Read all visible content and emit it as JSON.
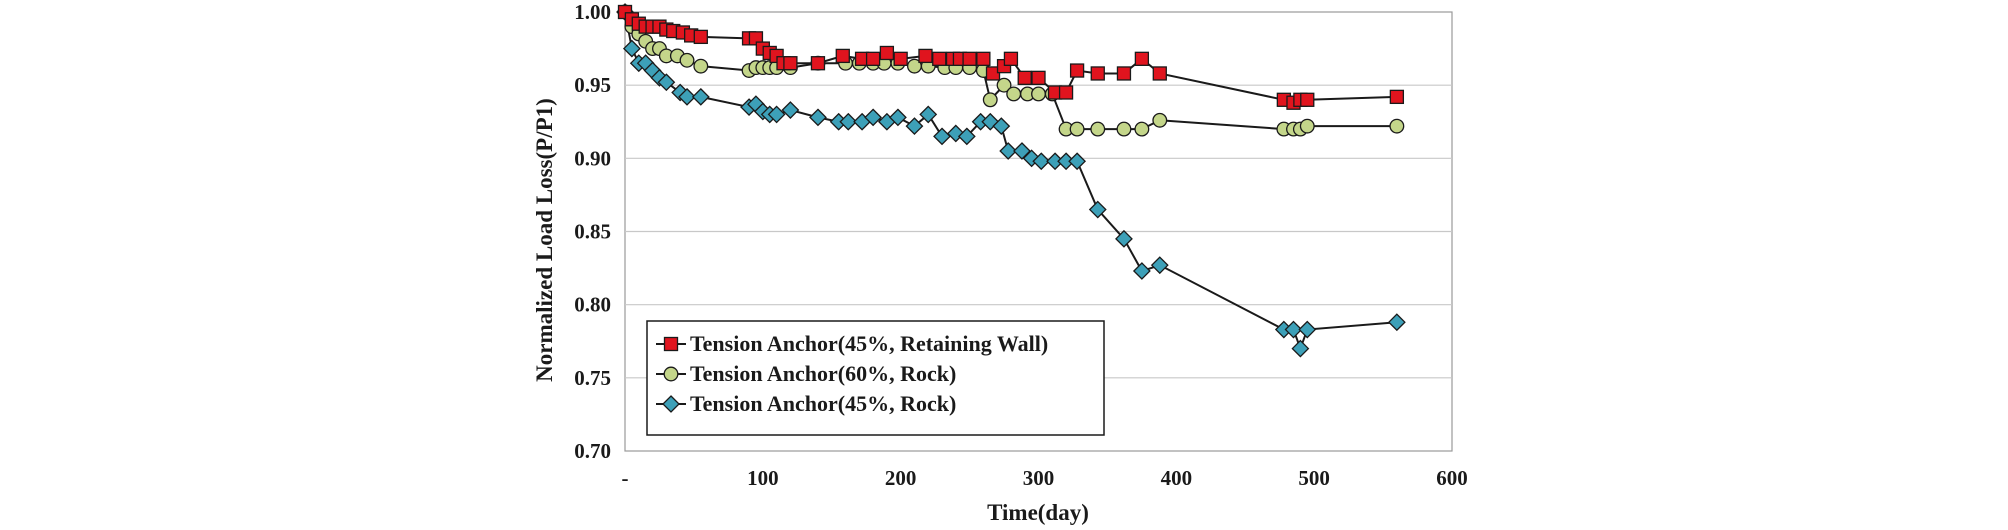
{
  "chart_data": {
    "type": "scatter-line",
    "title": "",
    "xlabel": "Time(day)",
    "ylabel": "Normalized Load Loss(P/P1)",
    "xlim": [
      0,
      600
    ],
    "ylim": [
      0.7,
      1.0
    ],
    "x_ticks": [
      {
        "value": 0,
        "label": "-"
      },
      {
        "value": 100,
        "label": "100"
      },
      {
        "value": 200,
        "label": "200"
      },
      {
        "value": 300,
        "label": "300"
      },
      {
        "value": 400,
        "label": "400"
      },
      {
        "value": 500,
        "label": "500"
      },
      {
        "value": 600,
        "label": "600"
      }
    ],
    "y_ticks": [
      {
        "value": 0.7,
        "label": "0.70"
      },
      {
        "value": 0.75,
        "label": "0.75"
      },
      {
        "value": 0.8,
        "label": "0.80"
      },
      {
        "value": 0.85,
        "label": "0.85"
      },
      {
        "value": 0.9,
        "label": "0.90"
      },
      {
        "value": 0.95,
        "label": "0.95"
      },
      {
        "value": 1.0,
        "label": "1.00"
      }
    ],
    "grid": "horizontal",
    "legend_position": "bottom-left",
    "series": [
      {
        "name": "Tension Anchor(45%, Retaining Wall)",
        "marker": "square",
        "color": "#e0141e",
        "x": [
          0,
          5,
          10,
          15,
          20,
          25,
          30,
          35,
          42,
          48,
          55,
          90,
          95,
          100,
          105,
          110,
          115,
          120,
          140,
          158,
          172,
          180,
          190,
          200,
          218,
          228,
          238,
          243,
          250,
          260,
          267,
          275,
          280,
          290,
          300,
          312,
          320,
          328,
          343,
          362,
          375,
          388,
          478,
          485,
          490,
          495,
          560
        ],
        "y": [
          1.0,
          0.995,
          0.992,
          0.99,
          0.99,
          0.99,
          0.988,
          0.987,
          0.986,
          0.984,
          0.983,
          0.982,
          0.982,
          0.975,
          0.972,
          0.97,
          0.965,
          0.965,
          0.965,
          0.97,
          0.968,
          0.968,
          0.972,
          0.968,
          0.97,
          0.968,
          0.968,
          0.968,
          0.968,
          0.968,
          0.958,
          0.963,
          0.968,
          0.955,
          0.955,
          0.945,
          0.945,
          0.96,
          0.958,
          0.958,
          0.968,
          0.958,
          0.94,
          0.938,
          0.94,
          0.94,
          0.942
        ]
      },
      {
        "name": "Tension Anchor(60%, Rock)",
        "marker": "circle",
        "color": "#c4d68a",
        "x": [
          0,
          5,
          10,
          15,
          20,
          25,
          30,
          38,
          45,
          55,
          90,
          95,
          100,
          105,
          110,
          120,
          140,
          160,
          170,
          180,
          188,
          198,
          210,
          220,
          232,
          240,
          250,
          260,
          265,
          275,
          282,
          292,
          300,
          310,
          320,
          328,
          343,
          362,
          375,
          388,
          478,
          485,
          490,
          495,
          560
        ],
        "y": [
          1.0,
          0.99,
          0.985,
          0.98,
          0.975,
          0.975,
          0.97,
          0.97,
          0.967,
          0.963,
          0.96,
          0.962,
          0.962,
          0.962,
          0.962,
          0.962,
          0.965,
          0.965,
          0.965,
          0.965,
          0.965,
          0.965,
          0.963,
          0.963,
          0.962,
          0.962,
          0.962,
          0.96,
          0.94,
          0.95,
          0.944,
          0.944,
          0.944,
          0.944,
          0.92,
          0.92,
          0.92,
          0.92,
          0.92,
          0.926,
          0.92,
          0.92,
          0.92,
          0.922,
          0.922
        ]
      },
      {
        "name": "Tension Anchor(45%, Rock)",
        "marker": "diamond",
        "color": "#3da0b8",
        "x": [
          0,
          5,
          10,
          15,
          20,
          25,
          30,
          40,
          45,
          55,
          90,
          95,
          100,
          105,
          110,
          120,
          140,
          155,
          162,
          172,
          180,
          190,
          198,
          210,
          220,
          230,
          240,
          248,
          258,
          265,
          273,
          278,
          288,
          295,
          302,
          312,
          320,
          328,
          343,
          362,
          375,
          388,
          478,
          485,
          490,
          495,
          560
        ],
        "y": [
          1.0,
          0.975,
          0.965,
          0.965,
          0.96,
          0.955,
          0.952,
          0.945,
          0.942,
          0.942,
          0.935,
          0.937,
          0.932,
          0.93,
          0.93,
          0.933,
          0.928,
          0.925,
          0.925,
          0.925,
          0.928,
          0.925,
          0.928,
          0.922,
          0.93,
          0.915,
          0.917,
          0.915,
          0.925,
          0.925,
          0.922,
          0.905,
          0.905,
          0.9,
          0.898,
          0.898,
          0.898,
          0.898,
          0.865,
          0.845,
          0.823,
          0.827,
          0.783,
          0.783,
          0.77,
          0.783,
          0.788
        ]
      }
    ],
    "legend_labels": [
      "Tension Anchor(45%, Retaining Wall)",
      "Tension Anchor(60%, Rock)",
      "Tension Anchor(45%, Rock)"
    ]
  }
}
